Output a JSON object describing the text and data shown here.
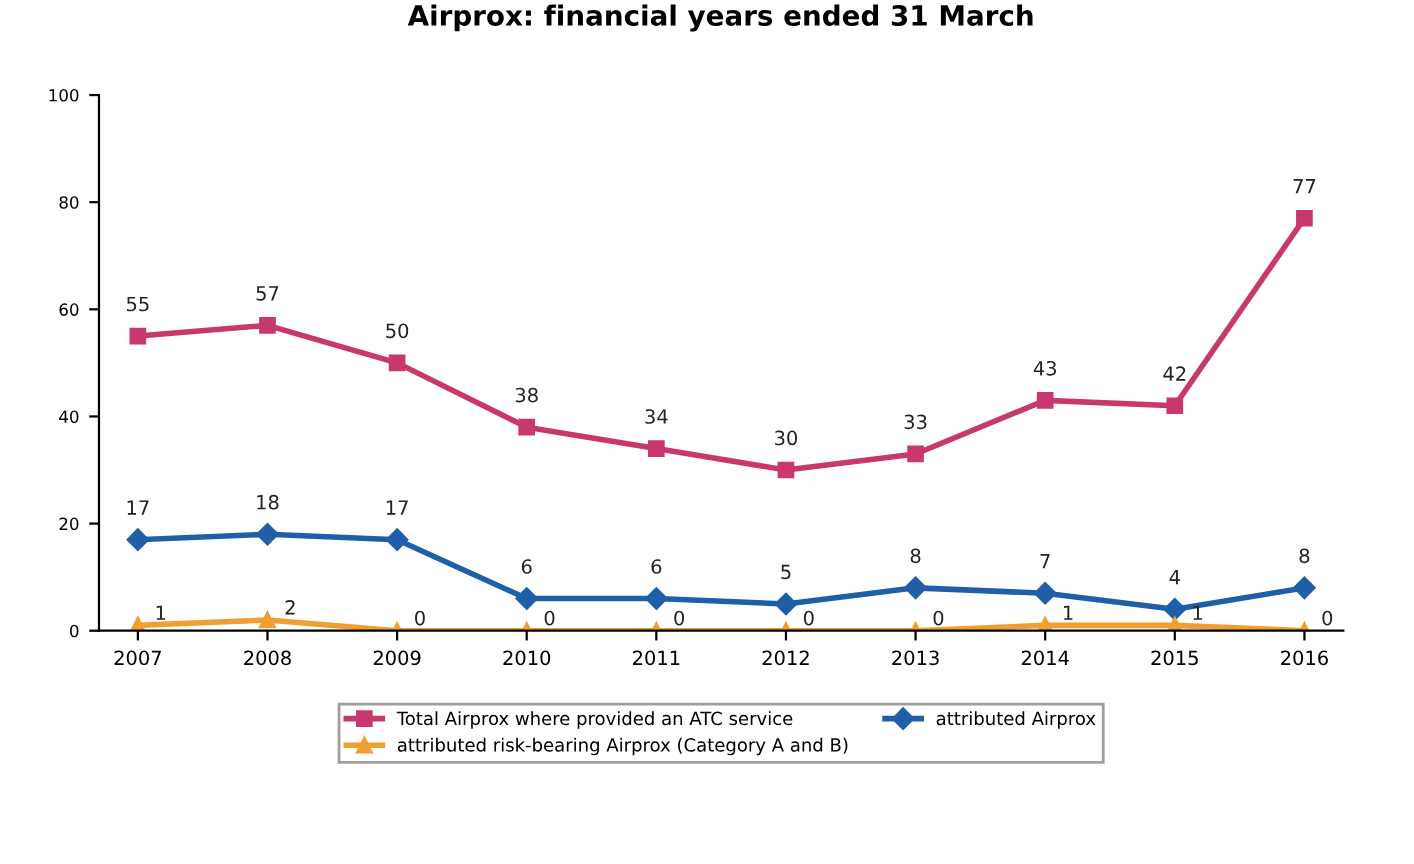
{
  "chart_data": {
    "type": "line",
    "title": "Airprox: financial years ended 31 March",
    "categories": [
      "2007",
      "2008",
      "2009",
      "2010",
      "2011",
      "2012",
      "2013",
      "2014",
      "2015",
      "2016"
    ],
    "series": [
      {
        "name": "Total Airprox where provided an ATC service",
        "color": "#c8386e",
        "marker": "square",
        "values": [
          55,
          57,
          50,
          38,
          34,
          30,
          33,
          43,
          42,
          77
        ]
      },
      {
        "name": "attributed Airprox",
        "color": "#1f5fa8",
        "marker": "diamond",
        "values": [
          17,
          18,
          17,
          6,
          6,
          5,
          8,
          7,
          4,
          8
        ]
      },
      {
        "name": "attributed risk-bearing Airprox (Category A and B)",
        "color": "#f0a030",
        "marker": "triangle",
        "values": [
          1,
          2,
          0,
          0,
          0,
          0,
          0,
          1,
          1,
          0
        ]
      }
    ],
    "ylim": [
      0,
      100
    ],
    "yticks": [
      0,
      20,
      40,
      60,
      80,
      100
    ],
    "grid": false,
    "legend": "bottom",
    "data_labels": true,
    "line_style": "solid"
  }
}
